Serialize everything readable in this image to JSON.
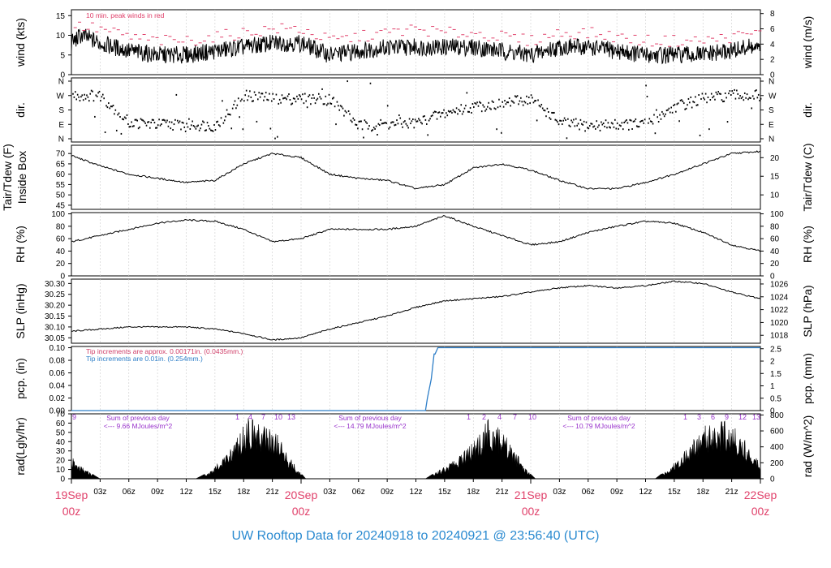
{
  "title": "UW Rooftop Data for 20240918  to  20240921 @ 23:56:40  (UTC)",
  "colors": {
    "title": "#2a8ad0",
    "date_label": "#e0406a",
    "peak": "#e0406a",
    "tip_old": "#d0406a",
    "tip_new": "#2f7fc8",
    "radiation_note": "#9933cc",
    "data": "#000000"
  },
  "x_axis": {
    "hour_ticks": [
      "03z",
      "06z",
      "09z",
      "12z",
      "15z",
      "18z",
      "21z",
      "03z",
      "06z",
      "09z",
      "12z",
      "15z",
      "18z",
      "21z",
      "03z",
      "06z",
      "09z",
      "12z",
      "15z",
      "18z",
      "21z"
    ],
    "date_labels": [
      {
        "date": "19Sep",
        "hour": "00z"
      },
      {
        "date": "20Sep",
        "hour": "00z"
      },
      {
        "date": "21Sep",
        "hour": "00z"
      },
      {
        "date": "22Sep",
        "hour": "00z"
      }
    ]
  },
  "panels": {
    "wind": {
      "ylabel_left": "wind (kts)",
      "ylabel_right": "wind (m/s)",
      "left_ticks": [
        "0",
        "5",
        "10",
        "15"
      ],
      "right_ticks": [
        "0",
        "2",
        "4",
        "6",
        "8"
      ],
      "note": "10 min. peak winds in red"
    },
    "dir": {
      "ylabel_left": "dir.",
      "ylabel_right": "dir.",
      "ticks": [
        "N",
        "W",
        "S",
        "E",
        "N"
      ]
    },
    "temp": {
      "ylabel_left_1": "Tair/Tdew (F)",
      "ylabel_left_2": "Inside Box",
      "ylabel_right": "Tair/Tdew (C)",
      "left_ticks": [
        "45",
        "50",
        "55",
        "60",
        "65",
        "70"
      ],
      "right_ticks": [
        "10",
        "15",
        "20"
      ]
    },
    "rh": {
      "ylabel_left": "RH (%)",
      "ylabel_right": "RH (%)",
      "ticks": [
        "0",
        "20",
        "40",
        "60",
        "80",
        "100"
      ]
    },
    "slp": {
      "ylabel_left": "SLP (inHg)",
      "ylabel_right": "SLP (hPa)",
      "left_ticks": [
        "30.05",
        "30.10",
        "30.15",
        "30.20",
        "30.25",
        "30.30"
      ],
      "right_ticks": [
        "1018",
        "1020",
        "1022",
        "1024",
        "1026"
      ]
    },
    "pcp": {
      "ylabel_left": "pcp. (in)",
      "ylabel_right": "pcp. (mm)",
      "left_ticks": [
        "0.00",
        "0.02",
        "0.04",
        "0.06",
        "0.08",
        "0.10"
      ],
      "right_ticks": [
        "0",
        "0.5",
        "1",
        "1.5",
        "2",
        "2.5"
      ],
      "note_1": "Tip increments are approx. 0.00171in. (0.0435mm.)",
      "note_2": "Tip increments are 0.01in. (0.254mm.)"
    },
    "rad": {
      "ylabel_left": "rad(Lgly/hr)",
      "ylabel_right": "rad (W/m^2)",
      "left_ticks": [
        "0",
        "10",
        "20",
        "30",
        "40",
        "50",
        "60",
        "70"
      ],
      "right_ticks": [
        "0",
        "200",
        "400",
        "600",
        "800"
      ],
      "sum_label": "Sum of previous day",
      "sums": [
        "<--- 9.66 MJoules/m^2",
        "<--- 14.79 MJoules/m^2",
        "<--- 10.79 MJoules/m^2"
      ],
      "hour_marks_day1": [
        "9"
      ],
      "hour_marks_day1b": [
        "1",
        "4",
        "7",
        "10",
        "13"
      ],
      "hour_marks_day2": [
        "1",
        "2",
        "4",
        "7",
        "10"
      ],
      "hour_marks_day3": [
        "1",
        "3",
        "6",
        "9",
        "12",
        "13"
      ]
    }
  },
  "chart_data": {
    "type": "line",
    "x_range_hours": [
      0,
      72
    ],
    "series": [
      {
        "name": "wind",
        "units": "kts",
        "hours": [
          0,
          1,
          3,
          6,
          9,
          12,
          15,
          18,
          21,
          24,
          27,
          30,
          33,
          36,
          39,
          42,
          45,
          48,
          51,
          54,
          57,
          60,
          63,
          66,
          69,
          71,
          72
        ],
        "values": [
          8,
          10,
          8,
          6,
          5,
          5,
          6,
          7,
          8,
          8,
          5,
          6,
          7,
          7,
          7,
          7,
          6,
          5,
          7,
          7,
          6,
          5,
          5,
          5,
          6,
          7,
          6
        ]
      },
      {
        "name": "wind peak",
        "units": "kts",
        "hours": [
          0,
          3,
          6,
          9,
          12,
          15,
          18,
          21,
          24,
          27,
          30,
          33,
          36,
          39,
          42,
          45,
          48,
          51,
          54,
          57,
          60,
          63,
          66,
          69,
          72
        ],
        "values": [
          12,
          11,
          9,
          8,
          8,
          9,
          10,
          11,
          11,
          8,
          9,
          10,
          11,
          10,
          10,
          9,
          8,
          10,
          10,
          9,
          8,
          8,
          8,
          9,
          10
        ]
      },
      {
        "name": "dir",
        "units": "compass",
        "hours": [
          0,
          3,
          6,
          9,
          12,
          15,
          18,
          21,
          24,
          27,
          30,
          33,
          36,
          39,
          42,
          45,
          48,
          51,
          54,
          57,
          60,
          63,
          66,
          69,
          72
        ],
        "values": [
          270,
          270,
          100,
          90,
          90,
          80,
          270,
          250,
          250,
          250,
          80,
          90,
          100,
          160,
          200,
          220,
          250,
          100,
          80,
          90,
          90,
          200,
          250,
          270,
          270
        ]
      },
      {
        "name": "Tair",
        "units": "F",
        "hours": [
          0,
          3,
          6,
          9,
          12,
          15,
          18,
          21,
          24,
          27,
          30,
          33,
          36,
          39,
          42,
          45,
          48,
          51,
          54,
          57,
          60,
          63,
          66,
          69,
          72
        ],
        "values": [
          69,
          64,
          60,
          58,
          56,
          57,
          65,
          70,
          68,
          60,
          58,
          57,
          53,
          55,
          63,
          65,
          62,
          57,
          53,
          53,
          56,
          60,
          65,
          70,
          71
        ]
      },
      {
        "name": "RH",
        "units": "%",
        "hours": [
          0,
          3,
          6,
          9,
          12,
          15,
          18,
          21,
          24,
          27,
          30,
          33,
          36,
          39,
          42,
          45,
          48,
          51,
          54,
          57,
          60,
          63,
          66,
          69,
          72
        ],
        "values": [
          55,
          65,
          75,
          85,
          90,
          88,
          75,
          55,
          60,
          75,
          75,
          75,
          80,
          97,
          80,
          65,
          50,
          55,
          70,
          80,
          88,
          85,
          70,
          50,
          40
        ]
      },
      {
        "name": "SLP",
        "units": "inHg",
        "hours": [
          0,
          3,
          6,
          9,
          12,
          15,
          18,
          21,
          24,
          27,
          30,
          33,
          36,
          39,
          42,
          45,
          48,
          51,
          54,
          57,
          60,
          63,
          66,
          69,
          72
        ],
        "values": [
          30.08,
          30.09,
          30.1,
          30.1,
          30.1,
          30.09,
          30.07,
          30.04,
          30.05,
          30.09,
          30.12,
          30.15,
          30.19,
          30.22,
          30.23,
          30.24,
          30.26,
          30.28,
          30.29,
          30.28,
          30.29,
          30.31,
          30.3,
          30.26,
          30.23
        ]
      },
      {
        "name": "pcp",
        "units": "in",
        "hours": [
          0,
          37.0,
          37.2,
          37.6,
          37.9,
          38.0,
          38.3,
          72
        ],
        "values": [
          0,
          0,
          0.02,
          0.05,
          0.09,
          0.09,
          0.1,
          0.1
        ]
      },
      {
        "name": "rad",
        "units": "Lgly/hr",
        "hours": [
          0,
          0.5,
          1.5,
          2.5,
          3.0,
          13,
          14.5,
          16,
          17.5,
          18.5,
          19.5,
          20.5,
          21.5,
          22.5,
          23.5,
          24.5,
          37,
          38.5,
          40,
          41.5,
          42.5,
          43.5,
          44.5,
          45.5,
          46.5,
          47.5,
          48.5,
          61,
          62.5,
          64,
          65.5,
          66.5,
          67.5,
          68.5,
          69.5,
          70.5,
          71.5,
          72
        ],
        "values": [
          24,
          18,
          10,
          3,
          0,
          0,
          8,
          25,
          48,
          70,
          60,
          58,
          48,
          30,
          12,
          0,
          0,
          10,
          20,
          35,
          45,
          65,
          60,
          45,
          28,
          10,
          0,
          0,
          12,
          30,
          50,
          60,
          65,
          62,
          55,
          40,
          25,
          20
        ]
      }
    ]
  }
}
